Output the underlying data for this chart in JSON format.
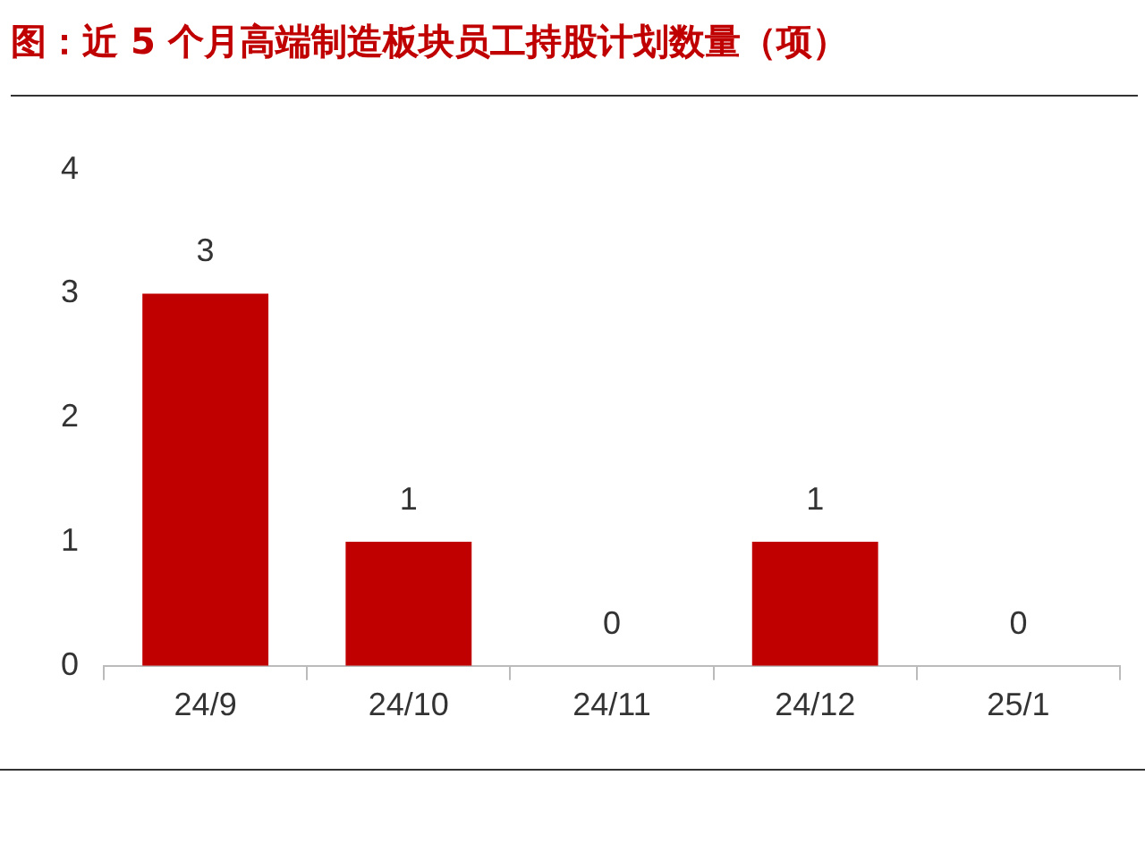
{
  "chart_data": {
    "type": "bar",
    "title": "图：近 5 个月高端制造板块员工持股计划数量（项）",
    "categories": [
      "24/9",
      "24/10",
      "24/11",
      "24/12",
      "25/1"
    ],
    "values": [
      3,
      1,
      0,
      1,
      0
    ],
    "color": "#c00000",
    "ylim": [
      0,
      4
    ],
    "yticks": [
      0,
      1,
      2,
      3,
      4
    ],
    "grid": false,
    "legend": false,
    "data_labels": true
  }
}
